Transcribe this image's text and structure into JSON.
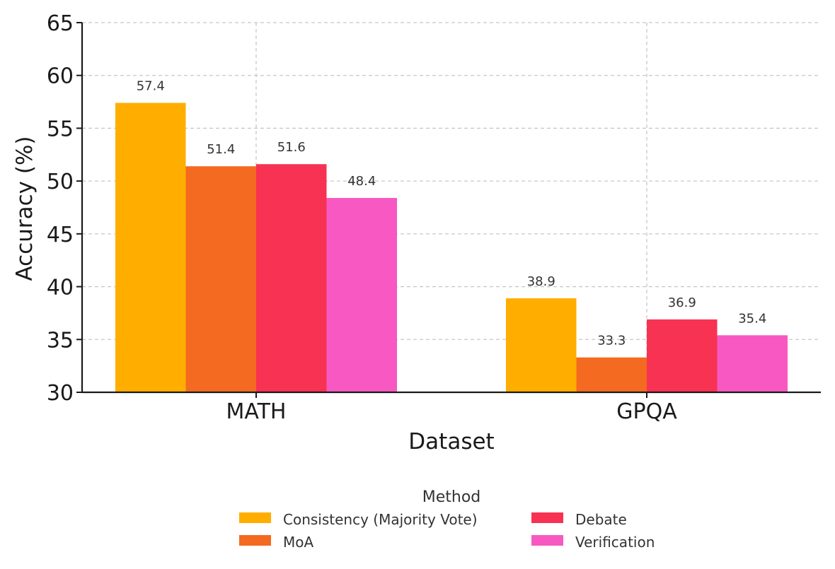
{
  "chart_data": {
    "type": "bar",
    "title": "",
    "xlabel": "Dataset",
    "ylabel": "Accuracy (%)",
    "ylim": [
      30,
      65
    ],
    "yticks": [
      30,
      35,
      40,
      45,
      50,
      55,
      60,
      65
    ],
    "grid": true,
    "categories": [
      "MATH",
      "GPQA"
    ],
    "series": [
      {
        "name": "Consistency (Majority Vote)",
        "color": "#FFAE00",
        "values": [
          57.4,
          38.9
        ]
      },
      {
        "name": "MoA",
        "color": "#F46A21",
        "values": [
          51.4,
          33.3
        ]
      },
      {
        "name": "Debate",
        "color": "#F83252",
        "values": [
          51.6,
          36.9
        ]
      },
      {
        "name": "Verification",
        "color": "#F858C1",
        "values": [
          48.4,
          35.4
        ]
      }
    ],
    "legend": {
      "title": "Method",
      "placement": "bottom-center"
    }
  }
}
